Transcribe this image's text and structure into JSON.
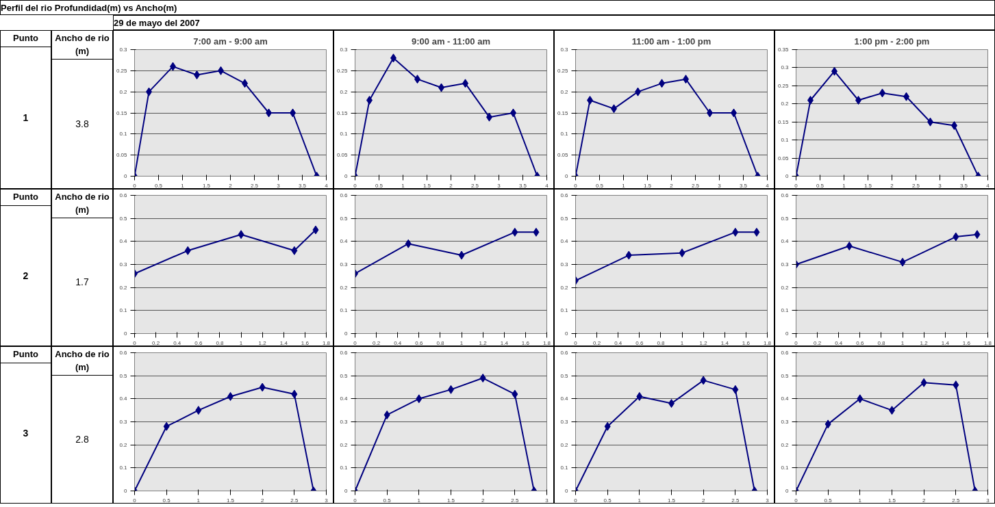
{
  "chart_data": [
    {
      "type": "other",
      "title": "Perfil del rio Profundidad(m) vs Ancho(m)",
      "subtitle": "29 de mayo del 2007"
    },
    {
      "type": "other",
      "annotations": [
        "Punto",
        "Ancho de rio (m)",
        "1",
        "3.8"
      ]
    },
    {
      "type": "line",
      "title": "7:00 am - 9:00 am",
      "x": [
        0,
        0.3,
        0.8,
        1.3,
        1.8,
        2.3,
        2.8,
        3.3,
        3.8
      ],
      "values": [
        0,
        0.2,
        0.26,
        0.24,
        0.25,
        0.22,
        0.15,
        0.15,
        0
      ],
      "color": "#00007f",
      "marker": "diamond",
      "grid": "y",
      "xlim": [
        0,
        4
      ],
      "ylim": [
        0,
        0.3
      ],
      "xticks": [
        0,
        0.5,
        1,
        1.5,
        2,
        2.5,
        3,
        3.5,
        4
      ],
      "yticks": [
        0,
        0.05,
        0.1,
        0.15,
        0.2,
        0.25,
        0.3
      ]
    },
    {
      "type": "line",
      "title": "9:00 am - 11:00 am",
      "x": [
        0,
        0.3,
        0.8,
        1.3,
        1.8,
        2.3,
        2.8,
        3.3,
        3.8
      ],
      "values": [
        0,
        0.18,
        0.28,
        0.23,
        0.21,
        0.22,
        0.14,
        0.15,
        0
      ],
      "color": "#00007f",
      "marker": "diamond",
      "grid": "y",
      "xlim": [
        0,
        4
      ],
      "ylim": [
        0,
        0.3
      ],
      "xticks": [
        0,
        0.5,
        1,
        1.5,
        2,
        2.5,
        3,
        3.5,
        4
      ],
      "yticks": [
        0,
        0.05,
        0.1,
        0.15,
        0.2,
        0.25,
        0.3
      ]
    },
    {
      "type": "line",
      "title": "11:00 am - 1:00 pm",
      "x": [
        0,
        0.3,
        0.8,
        1.3,
        1.8,
        2.3,
        2.8,
        3.3,
        3.8
      ],
      "values": [
        0,
        0.18,
        0.16,
        0.2,
        0.22,
        0.23,
        0.15,
        0.15,
        0
      ],
      "color": "#00007f",
      "marker": "diamond",
      "grid": "y",
      "xlim": [
        0,
        4
      ],
      "ylim": [
        0,
        0.3
      ],
      "xticks": [
        0,
        0.5,
        1,
        1.5,
        2,
        2.5,
        3,
        3.5,
        4
      ],
      "yticks": [
        0,
        0.05,
        0.1,
        0.15,
        0.2,
        0.25,
        0.3
      ]
    },
    {
      "type": "line",
      "title": "1:00 pm - 2:00 pm",
      "x": [
        0,
        0.3,
        0.8,
        1.3,
        1.8,
        2.3,
        2.8,
        3.3,
        3.8
      ],
      "values": [
        0,
        0.21,
        0.29,
        0.21,
        0.23,
        0.22,
        0.15,
        0.14,
        0
      ],
      "color": "#00007f",
      "marker": "diamond",
      "grid": "y",
      "xlim": [
        0,
        4
      ],
      "ylim": [
        0,
        0.35
      ],
      "xticks": [
        0,
        0.5,
        1,
        1.5,
        2,
        2.5,
        3,
        3.5,
        4
      ],
      "yticks": [
        0,
        0.05,
        0.1,
        0.15,
        0.2,
        0.25,
        0.3,
        0.35
      ]
    },
    {
      "type": "other",
      "annotations": [
        "Punto",
        "Ancho de rio (m)",
        "2",
        "1.7"
      ]
    },
    {
      "type": "line",
      "x": [
        0,
        0.5,
        1,
        1.5,
        1.7
      ],
      "values": [
        0.26,
        0.36,
        0.43,
        0.36,
        0.45
      ],
      "color": "#00007f",
      "marker": "diamond",
      "grid": "y",
      "xlim": [
        0,
        1.8
      ],
      "ylim": [
        0,
        0.6
      ],
      "xticks": [
        0,
        0.2,
        0.4,
        0.6,
        0.8,
        1,
        1.2,
        1.4,
        1.6,
        1.8
      ],
      "yticks": [
        0,
        0.1,
        0.2,
        0.3,
        0.4,
        0.5,
        0.6
      ]
    },
    {
      "type": "line",
      "x": [
        0,
        0.5,
        1,
        1.5,
        1.7
      ],
      "values": [
        0.26,
        0.39,
        0.34,
        0.44,
        0.44
      ],
      "color": "#00007f",
      "marker": "diamond",
      "grid": "y",
      "xlim": [
        0,
        1.8
      ],
      "ylim": [
        0,
        0.6
      ],
      "xticks": [
        0,
        0.2,
        0.4,
        0.6,
        0.8,
        1,
        1.2,
        1.4,
        1.6,
        1.8
      ],
      "yticks": [
        0,
        0.1,
        0.2,
        0.3,
        0.4,
        0.5,
        0.6
      ]
    },
    {
      "type": "line",
      "x": [
        0,
        0.5,
        1,
        1.5,
        1.7
      ],
      "values": [
        0.23,
        0.34,
        0.35,
        0.44,
        0.44
      ],
      "color": "#00007f",
      "marker": "diamond",
      "grid": "y",
      "xlim": [
        0,
        1.8
      ],
      "ylim": [
        0,
        0.6
      ],
      "xticks": [
        0,
        0.2,
        0.4,
        0.6,
        0.8,
        1,
        1.2,
        1.4,
        1.6,
        1.8
      ],
      "yticks": [
        0,
        0.1,
        0.2,
        0.3,
        0.4,
        0.5,
        0.6
      ]
    },
    {
      "type": "line",
      "x": [
        0,
        0.5,
        1,
        1.5,
        1.7
      ],
      "values": [
        0.3,
        0.38,
        0.31,
        0.42,
        0.43
      ],
      "color": "#00007f",
      "marker": "diamond",
      "grid": "y",
      "xlim": [
        0,
        1.8
      ],
      "ylim": [
        0,
        0.6
      ],
      "xticks": [
        0,
        0.2,
        0.4,
        0.6,
        0.8,
        1,
        1.2,
        1.4,
        1.6,
        1.8
      ],
      "yticks": [
        0,
        0.1,
        0.2,
        0.3,
        0.4,
        0.5,
        0.6
      ]
    },
    {
      "type": "other",
      "annotations": [
        "Punto",
        "Ancho de rio (m)",
        "3",
        "2.8"
      ]
    },
    {
      "type": "line",
      "x": [
        0,
        0.5,
        1,
        1.5,
        2,
        2.5,
        2.8
      ],
      "values": [
        0,
        0.28,
        0.35,
        0.41,
        0.45,
        0.42,
        0
      ],
      "color": "#00007f",
      "marker": "diamond",
      "grid": "y",
      "xlim": [
        0,
        3
      ],
      "ylim": [
        0,
        0.6
      ],
      "xticks": [
        0,
        0.5,
        1,
        1.5,
        2,
        2.5,
        3
      ],
      "yticks": [
        0,
        0.1,
        0.2,
        0.3,
        0.4,
        0.5,
        0.6
      ]
    },
    {
      "type": "line",
      "x": [
        0,
        0.5,
        1,
        1.5,
        2,
        2.5,
        2.8
      ],
      "values": [
        0,
        0.33,
        0.4,
        0.44,
        0.49,
        0.42,
        0
      ],
      "color": "#00007f",
      "marker": "diamond",
      "grid": "y",
      "xlim": [
        0,
        3
      ],
      "ylim": [
        0,
        0.6
      ],
      "xticks": [
        0,
        0.5,
        1,
        1.5,
        2,
        2.5,
        3
      ],
      "yticks": [
        0,
        0.1,
        0.2,
        0.3,
        0.4,
        0.5,
        0.6
      ]
    },
    {
      "type": "line",
      "x": [
        0,
        0.5,
        1,
        1.5,
        2,
        2.5,
        2.8
      ],
      "values": [
        0,
        0.28,
        0.41,
        0.38,
        0.48,
        0.44,
        0
      ],
      "color": "#00007f",
      "marker": "diamond",
      "grid": "y",
      "xlim": [
        0,
        3
      ],
      "ylim": [
        0,
        0.6
      ],
      "xticks": [
        0,
        0.5,
        1,
        1.5,
        2,
        2.5,
        3
      ],
      "yticks": [
        0,
        0.1,
        0.2,
        0.3,
        0.4,
        0.5,
        0.6
      ]
    },
    {
      "type": "line",
      "x": [
        0,
        0.5,
        1,
        1.5,
        2,
        2.5,
        2.8
      ],
      "values": [
        0,
        0.29,
        0.4,
        0.35,
        0.47,
        0.46,
        0
      ],
      "color": "#00007f",
      "marker": "diamond",
      "grid": "y",
      "xlim": [
        0,
        3
      ],
      "ylim": [
        0,
        0.6
      ],
      "xticks": [
        0,
        0.5,
        1,
        1.5,
        2,
        2.5,
        3
      ],
      "yticks": [
        0,
        0.1,
        0.2,
        0.3,
        0.4,
        0.5,
        0.6
      ]
    }
  ]
}
